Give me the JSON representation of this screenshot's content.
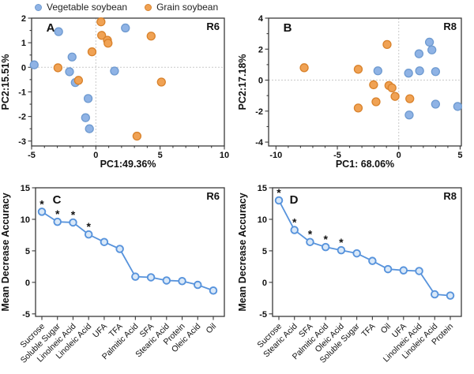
{
  "legend": {
    "items": [
      {
        "label": "Vegetable soybean",
        "color": "#8FB3E5",
        "border": "#6E9AD0"
      },
      {
        "label": "Grain soybean",
        "color": "#F0A254",
        "border": "#D9822B"
      }
    ]
  },
  "style": {
    "line_color": "#5793DC",
    "line_marker_fill": "#D9E8F8",
    "spine_color": "#3a3a3a",
    "grid_color": "#c9c9c9",
    "text_color": "#111111"
  },
  "chart_data": [
    {
      "id": "panel-A",
      "type": "scatter",
      "panel_label": "A",
      "corner_label": "R6",
      "xlabel": "PC1:49.36%",
      "ylabel": "PC2:15.51%",
      "xlim": [
        -5,
        10
      ],
      "ylim": [
        -3.2,
        2
      ],
      "xticks": [
        -5,
        0,
        5,
        10
      ],
      "yticks": [
        -3,
        -2,
        -1,
        0,
        1,
        2
      ],
      "x_minor": 1,
      "y_minor": 0.5,
      "grid": "zero-lines-dotted",
      "legend_position": "above-left",
      "series": [
        {
          "name": "Vegetable soybean",
          "points": [
            [
              -4.8,
              0.1
            ],
            [
              -2.9,
              1.45
            ],
            [
              -1.85,
              0.42
            ],
            [
              -2.05,
              -0.18
            ],
            [
              -1.6,
              -0.62
            ],
            [
              -0.6,
              -1.27
            ],
            [
              -0.8,
              -2.05
            ],
            [
              -0.5,
              -2.5
            ],
            [
              1.45,
              -0.15
            ],
            [
              2.3,
              1.6
            ]
          ]
        },
        {
          "name": "Grain soybean",
          "points": [
            [
              0.4,
              1.85
            ],
            [
              0.45,
              1.3
            ],
            [
              0.9,
              1.1
            ],
            [
              0.95,
              0.98
            ],
            [
              -0.3,
              0.63
            ],
            [
              -2.95,
              -0.02
            ],
            [
              -1.35,
              -0.53
            ],
            [
              4.3,
              1.27
            ],
            [
              5.1,
              -0.6
            ],
            [
              3.2,
              -2.8
            ]
          ]
        }
      ]
    },
    {
      "id": "panel-B",
      "type": "scatter",
      "panel_label": "B",
      "corner_label": "R8",
      "xlabel": "PC1: 68.06%",
      "ylabel": "PC2:17.18%",
      "xlim": [
        -10.6,
        5.1
      ],
      "ylim": [
        -4.25,
        4
      ],
      "xticks": [
        -10,
        -5,
        0,
        5
      ],
      "yticks": [
        -4,
        -2,
        0,
        2,
        4
      ],
      "x_minor": 1,
      "y_minor": 1,
      "grid": "zero-lines-dotted",
      "series": [
        {
          "name": "Vegetable soybean",
          "points": [
            [
              -1.7,
              0.6
            ],
            [
              0.8,
              0.45
            ],
            [
              1.65,
              1.7
            ],
            [
              2.5,
              2.45
            ],
            [
              2.7,
              1.95
            ],
            [
              1.7,
              0.6
            ],
            [
              3.0,
              0.55
            ],
            [
              3.0,
              -1.55
            ],
            [
              4.8,
              -1.7
            ],
            [
              0.85,
              -2.25
            ]
          ]
        },
        {
          "name": "Grain soybean",
          "points": [
            [
              -7.7,
              0.8
            ],
            [
              -3.3,
              0.7
            ],
            [
              -0.95,
              2.3
            ],
            [
              -2.05,
              -0.3
            ],
            [
              -0.8,
              -0.35
            ],
            [
              -0.55,
              -0.5
            ],
            [
              -0.3,
              -1.05
            ],
            [
              -1.85,
              -1.4
            ],
            [
              -3.3,
              -1.8
            ],
            [
              0.9,
              -1.2
            ]
          ]
        }
      ]
    },
    {
      "id": "panel-C",
      "type": "line",
      "panel_label": "C",
      "corner_label": "R6",
      "ylabel": "Mean Decrease Accuracy",
      "ylim": [
        -5.4,
        15
      ],
      "yticks": [
        -5,
        0,
        5,
        10,
        15
      ],
      "categories": [
        "Sucrose",
        "Soluble Sugar",
        "Linolneic Acid",
        "Linoleic Acid",
        "UFA",
        "TFA",
        "Palmitic Acid",
        "SFA",
        "Stearic Acid",
        "Protein",
        "Oleic Acid",
        "Oil"
      ],
      "values": [
        11.2,
        9.6,
        9.5,
        7.6,
        6.4,
        5.3,
        0.9,
        0.8,
        0.3,
        0.2,
        -0.4,
        -1.3
      ],
      "significant_count": 4,
      "significance_marker": "*"
    },
    {
      "id": "panel-D",
      "type": "line",
      "panel_label": "D",
      "corner_label": "R8",
      "ylabel": "Mean Decrease Accuracy",
      "ylim": [
        -5.4,
        15
      ],
      "yticks": [
        -5,
        0,
        5,
        10,
        15
      ],
      "categories": [
        "Sucrose",
        "Stearic Acid",
        "SFA",
        "Palmitic Acid",
        "Oleic Acid",
        "Soluble Sugar",
        "TFA",
        "Oil",
        "UFA",
        "Linolneic Acid",
        "Linoleic Acid",
        "Protein"
      ],
      "values": [
        13.0,
        8.3,
        6.4,
        5.6,
        5.1,
        4.6,
        3.4,
        2.1,
        1.9,
        1.8,
        -1.9,
        -2.1
      ],
      "significant_count": 5,
      "significance_marker": "*"
    }
  ]
}
